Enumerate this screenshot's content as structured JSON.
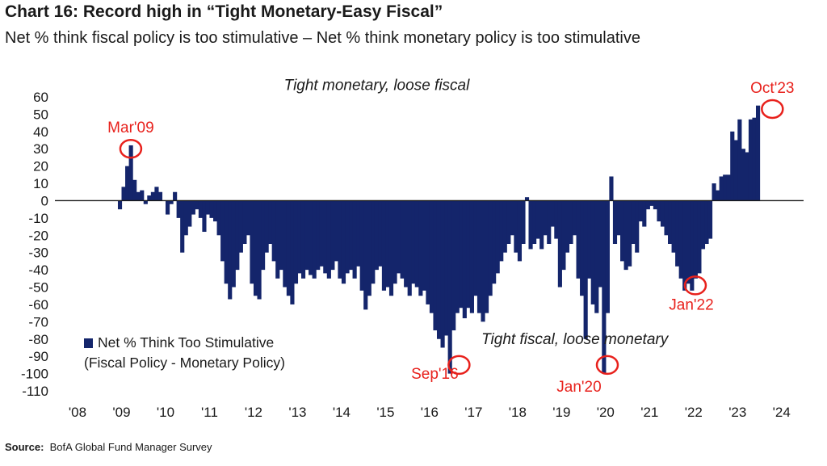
{
  "header": {
    "title": "Chart 16: Record high in “Tight Monetary-Easy Fiscal”",
    "subtitle": "Net % think fiscal policy is too stimulative – Net % think monetary policy is too stimulative"
  },
  "source": {
    "label": "Source:",
    "text": "BofA Global Fund Manager Survey"
  },
  "legend": {
    "line1": "Net % Think Too Stimulative",
    "line2": "(Fiscal Policy - Monetary Policy)"
  },
  "colors": {
    "bar": "#14256b",
    "callout": "#e8211c",
    "axis": "#1a1a1a"
  },
  "chart_data": {
    "type": "bar",
    "ylim": [
      -110,
      60
    ],
    "yticks": [
      60,
      50,
      40,
      30,
      20,
      10,
      0,
      -10,
      -20,
      -30,
      -40,
      -50,
      -60,
      -70,
      -80,
      -90,
      -100,
      -110
    ],
    "xlim": [
      2008,
      2024.5
    ],
    "xtick_labels": [
      "'08",
      "'09",
      "'10",
      "'11",
      "'12",
      "'13",
      "'14",
      "'15",
      "'16",
      "'17",
      "'18",
      "'19",
      "'20",
      "'21",
      "'22",
      "'23",
      "'24"
    ],
    "x_start": 2008.917,
    "period": "monthly",
    "values": [
      -5,
      8,
      20,
      32,
      12,
      5,
      6,
      -2,
      3,
      5,
      8,
      5,
      0,
      -8,
      -2,
      5,
      -10,
      -30,
      -20,
      -15,
      -8,
      -5,
      -10,
      -18,
      -8,
      -10,
      -12,
      -20,
      -35,
      -48,
      -57,
      -50,
      -40,
      -30,
      -25,
      -20,
      -48,
      -55,
      -57,
      -40,
      -30,
      -25,
      -35,
      -45,
      -40,
      -50,
      -55,
      -60,
      -48,
      -42,
      -45,
      -40,
      -43,
      -45,
      -40,
      -38,
      -42,
      -45,
      -40,
      -35,
      -45,
      -48,
      -42,
      -40,
      -45,
      -38,
      -52,
      -63,
      -55,
      -48,
      -40,
      -38,
      -52,
      -50,
      -55,
      -48,
      -42,
      -45,
      -50,
      -55,
      -48,
      -50,
      -55,
      -52,
      -60,
      -65,
      -75,
      -80,
      -85,
      -78,
      -100,
      -75,
      -65,
      -62,
      -68,
      -62,
      -65,
      -55,
      -65,
      -70,
      -65,
      -55,
      -48,
      -42,
      -35,
      -30,
      -25,
      -20,
      -30,
      -35,
      -25,
      2,
      -28,
      -25,
      -22,
      -28,
      -20,
      -25,
      -15,
      -22,
      -50,
      -40,
      -30,
      -25,
      -20,
      -45,
      -55,
      -80,
      -45,
      -60,
      -65,
      -50,
      -100,
      -65,
      14,
      -25,
      -20,
      -35,
      -40,
      -38,
      -25,
      -30,
      -12,
      -15,
      -5,
      -3,
      -5,
      -12,
      -15,
      -20,
      -25,
      -30,
      -38,
      -45,
      -52,
      -48,
      -52,
      -45,
      -42,
      -28,
      -25,
      -22,
      10,
      6,
      14,
      15,
      15,
      40,
      35,
      47,
      30,
      28,
      47,
      48,
      55
    ],
    "annotations": [
      {
        "label": "Mar'09",
        "x": 2009.21,
        "y": 30
      },
      {
        "label": "Sep'16",
        "x": 2016.67,
        "y": -95
      },
      {
        "label": "Jan'20",
        "x": 2020.04,
        "y": -95
      },
      {
        "label": "Jan'22",
        "x": 2022.04,
        "y": -49
      },
      {
        "label": "Oct'23",
        "x": 2023.79,
        "y": 53
      }
    ],
    "region_labels": [
      {
        "text": "Tight monetary, loose fiscal",
        "x": 2014.8,
        "y": 64
      },
      {
        "text": "Tight fiscal, loose monetary",
        "x": 2019.3,
        "y": -83
      }
    ]
  }
}
